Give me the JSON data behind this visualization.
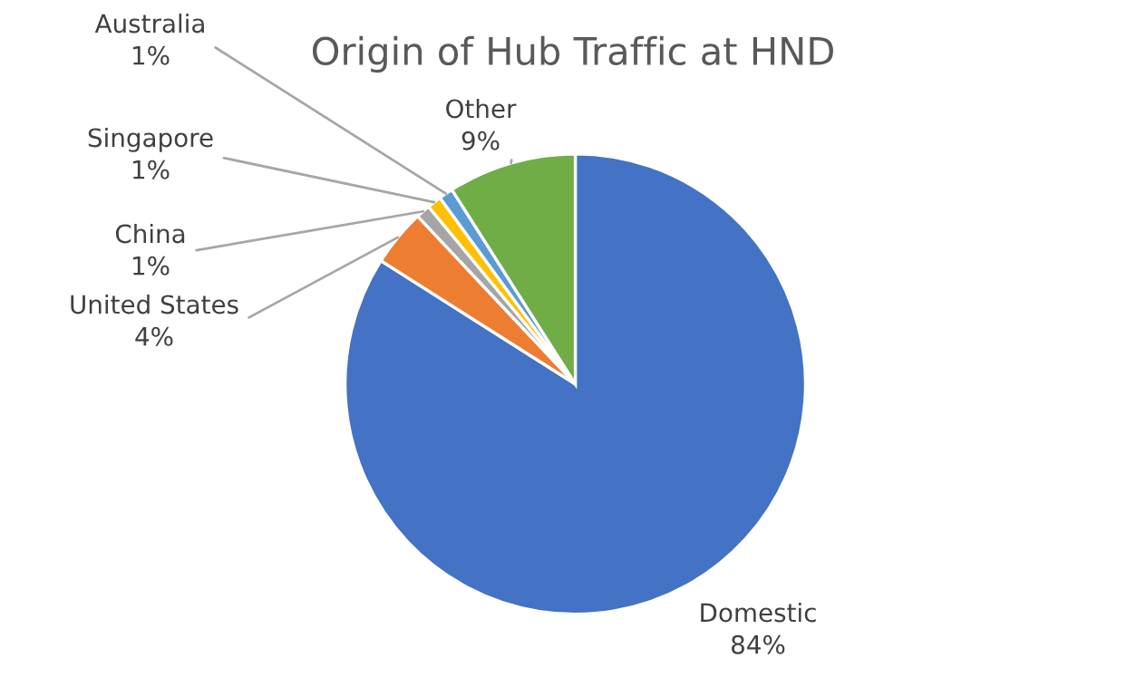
{
  "chart_data": {
    "type": "pie",
    "title": "Origin of Hub Traffic at HND",
    "categories": [
      "Domestic",
      "United States",
      "China",
      "Singapore",
      "Australia",
      "Other"
    ],
    "values": [
      84,
      4,
      1,
      1,
      1,
      9
    ],
    "value_labels": [
      "84%",
      "4%",
      "1%",
      "1%",
      "1%",
      "9%"
    ],
    "colors": [
      "#4472c4",
      "#ed7d31",
      "#a5a5a5",
      "#ffc000",
      "#5b9bd5",
      "#70ad47"
    ],
    "legend": false
  }
}
